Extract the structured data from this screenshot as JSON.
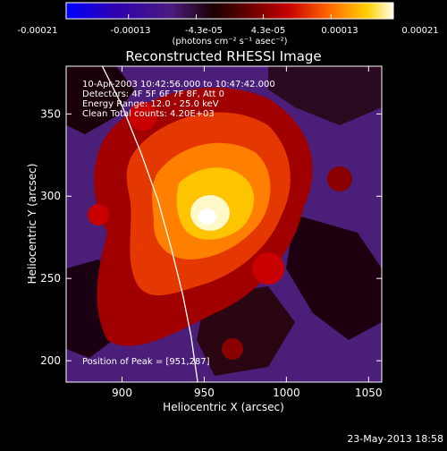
{
  "colorbar": {
    "ticks": [
      "-0.00021",
      "-0.00013",
      "-4.3e-05",
      "4.3e-05",
      "0.00013",
      "0.00021"
    ],
    "tick_values": [
      -0.00021,
      -0.00013,
      -4.3e-05,
      4.3e-05,
      0.00013,
      0.00021
    ],
    "range": [
      -0.00021,
      0.00021
    ],
    "unit_label": "(photons cm⁻² s⁻¹ asec⁻²)"
  },
  "footer": {
    "timestamp": "23-May-2013 18:58"
  },
  "chart_data": {
    "type": "heatmap",
    "title": "Reconstructed RHESSI Image",
    "xlabel": "Heliocentric X (arcsec)",
    "ylabel": "Heliocentric Y (arcsec)",
    "xlim": [
      866,
      1058
    ],
    "ylim": [
      187,
      379
    ],
    "x_ticks": [
      900,
      950,
      1000,
      1050
    ],
    "y_ticks": [
      200,
      250,
      300,
      350
    ],
    "info_lines": [
      "10-Apr-2003 10:42:56.000 to 10:47:42.000",
      "Detectors: 4F 5F 6F 7F 8F, Att 0",
      "Energy Range: 12.0 - 25.0 keV",
      "Clean    Total counts: 4.20E+03"
    ],
    "peak": {
      "label": "Position of Peak = [951,287]",
      "x": 951,
      "y": 287
    },
    "limb_curve": [
      [
        888,
        379
      ],
      [
        900,
        355
      ],
      [
        912,
        325
      ],
      [
        922,
        297
      ],
      [
        930,
        268
      ],
      [
        937,
        240
      ],
      [
        942,
        215
      ],
      [
        946,
        187
      ]
    ]
  }
}
